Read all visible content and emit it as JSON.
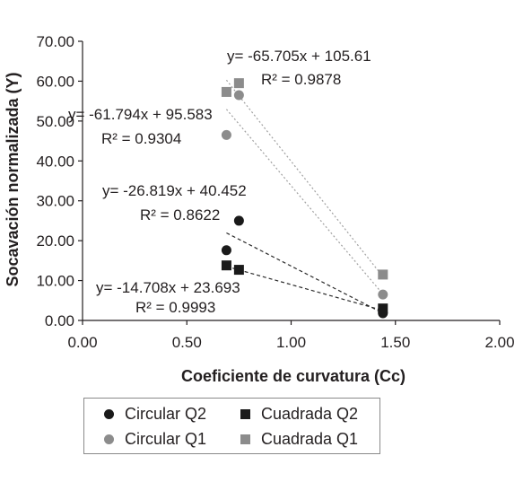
{
  "chart_data": {
    "type": "scatter",
    "xlabel": "Coeficiente de curvatura (Cc)",
    "ylabel": "Socavación normalizada (Y)",
    "xlim": [
      0,
      2
    ],
    "ylim": [
      0,
      70
    ],
    "xticks": [
      "0.00",
      "0.50",
      "1.00",
      "1.50",
      "2.00"
    ],
    "yticks": [
      "0.00",
      "10.00",
      "20.00",
      "30.00",
      "40.00",
      "50.00",
      "60.00",
      "70.00"
    ],
    "grid": false,
    "legend_position": "bottom",
    "series": [
      {
        "name": "Circular Q2",
        "marker": "circle",
        "color": "#1a1a1a",
        "points": [
          [
            0.69,
            17.6
          ],
          [
            0.75,
            25.0
          ],
          [
            1.44,
            1.8
          ]
        ],
        "trendline": {
          "x": [
            0.69,
            1.44
          ],
          "equation": "y= -26.819x + 40.452",
          "r2": "R² = 0.8622"
        }
      },
      {
        "name": "Cuadrada Q2",
        "marker": "square",
        "color": "#1a1a1a",
        "points": [
          [
            0.69,
            13.8
          ],
          [
            0.75,
            12.7
          ],
          [
            1.44,
            3.0
          ]
        ],
        "trendline": {
          "x": [
            0.69,
            1.44
          ],
          "equation": "y= -14.708x + 23.693",
          "r2": "R² = 0.9993"
        }
      },
      {
        "name": "Circular Q1",
        "marker": "circle",
        "color": "#8c8c8c",
        "points": [
          [
            0.69,
            46.5
          ],
          [
            0.75,
            56.5
          ],
          [
            1.44,
            6.5
          ]
        ],
        "trendline": {
          "x": [
            0.69,
            1.44
          ],
          "equation": "y= -61.794x + 95.583",
          "r2": "R² = 0.9304"
        }
      },
      {
        "name": "Cuadrada Q1",
        "marker": "square",
        "color": "#8c8c8c",
        "points": [
          [
            0.69,
            57.3
          ],
          [
            0.75,
            59.5
          ],
          [
            1.44,
            11.5
          ]
        ],
        "trendline": {
          "x": [
            0.69,
            1.44
          ],
          "equation": "y= -65.705x + 105.61",
          "r2": "R² = 0.9878"
        }
      }
    ]
  }
}
